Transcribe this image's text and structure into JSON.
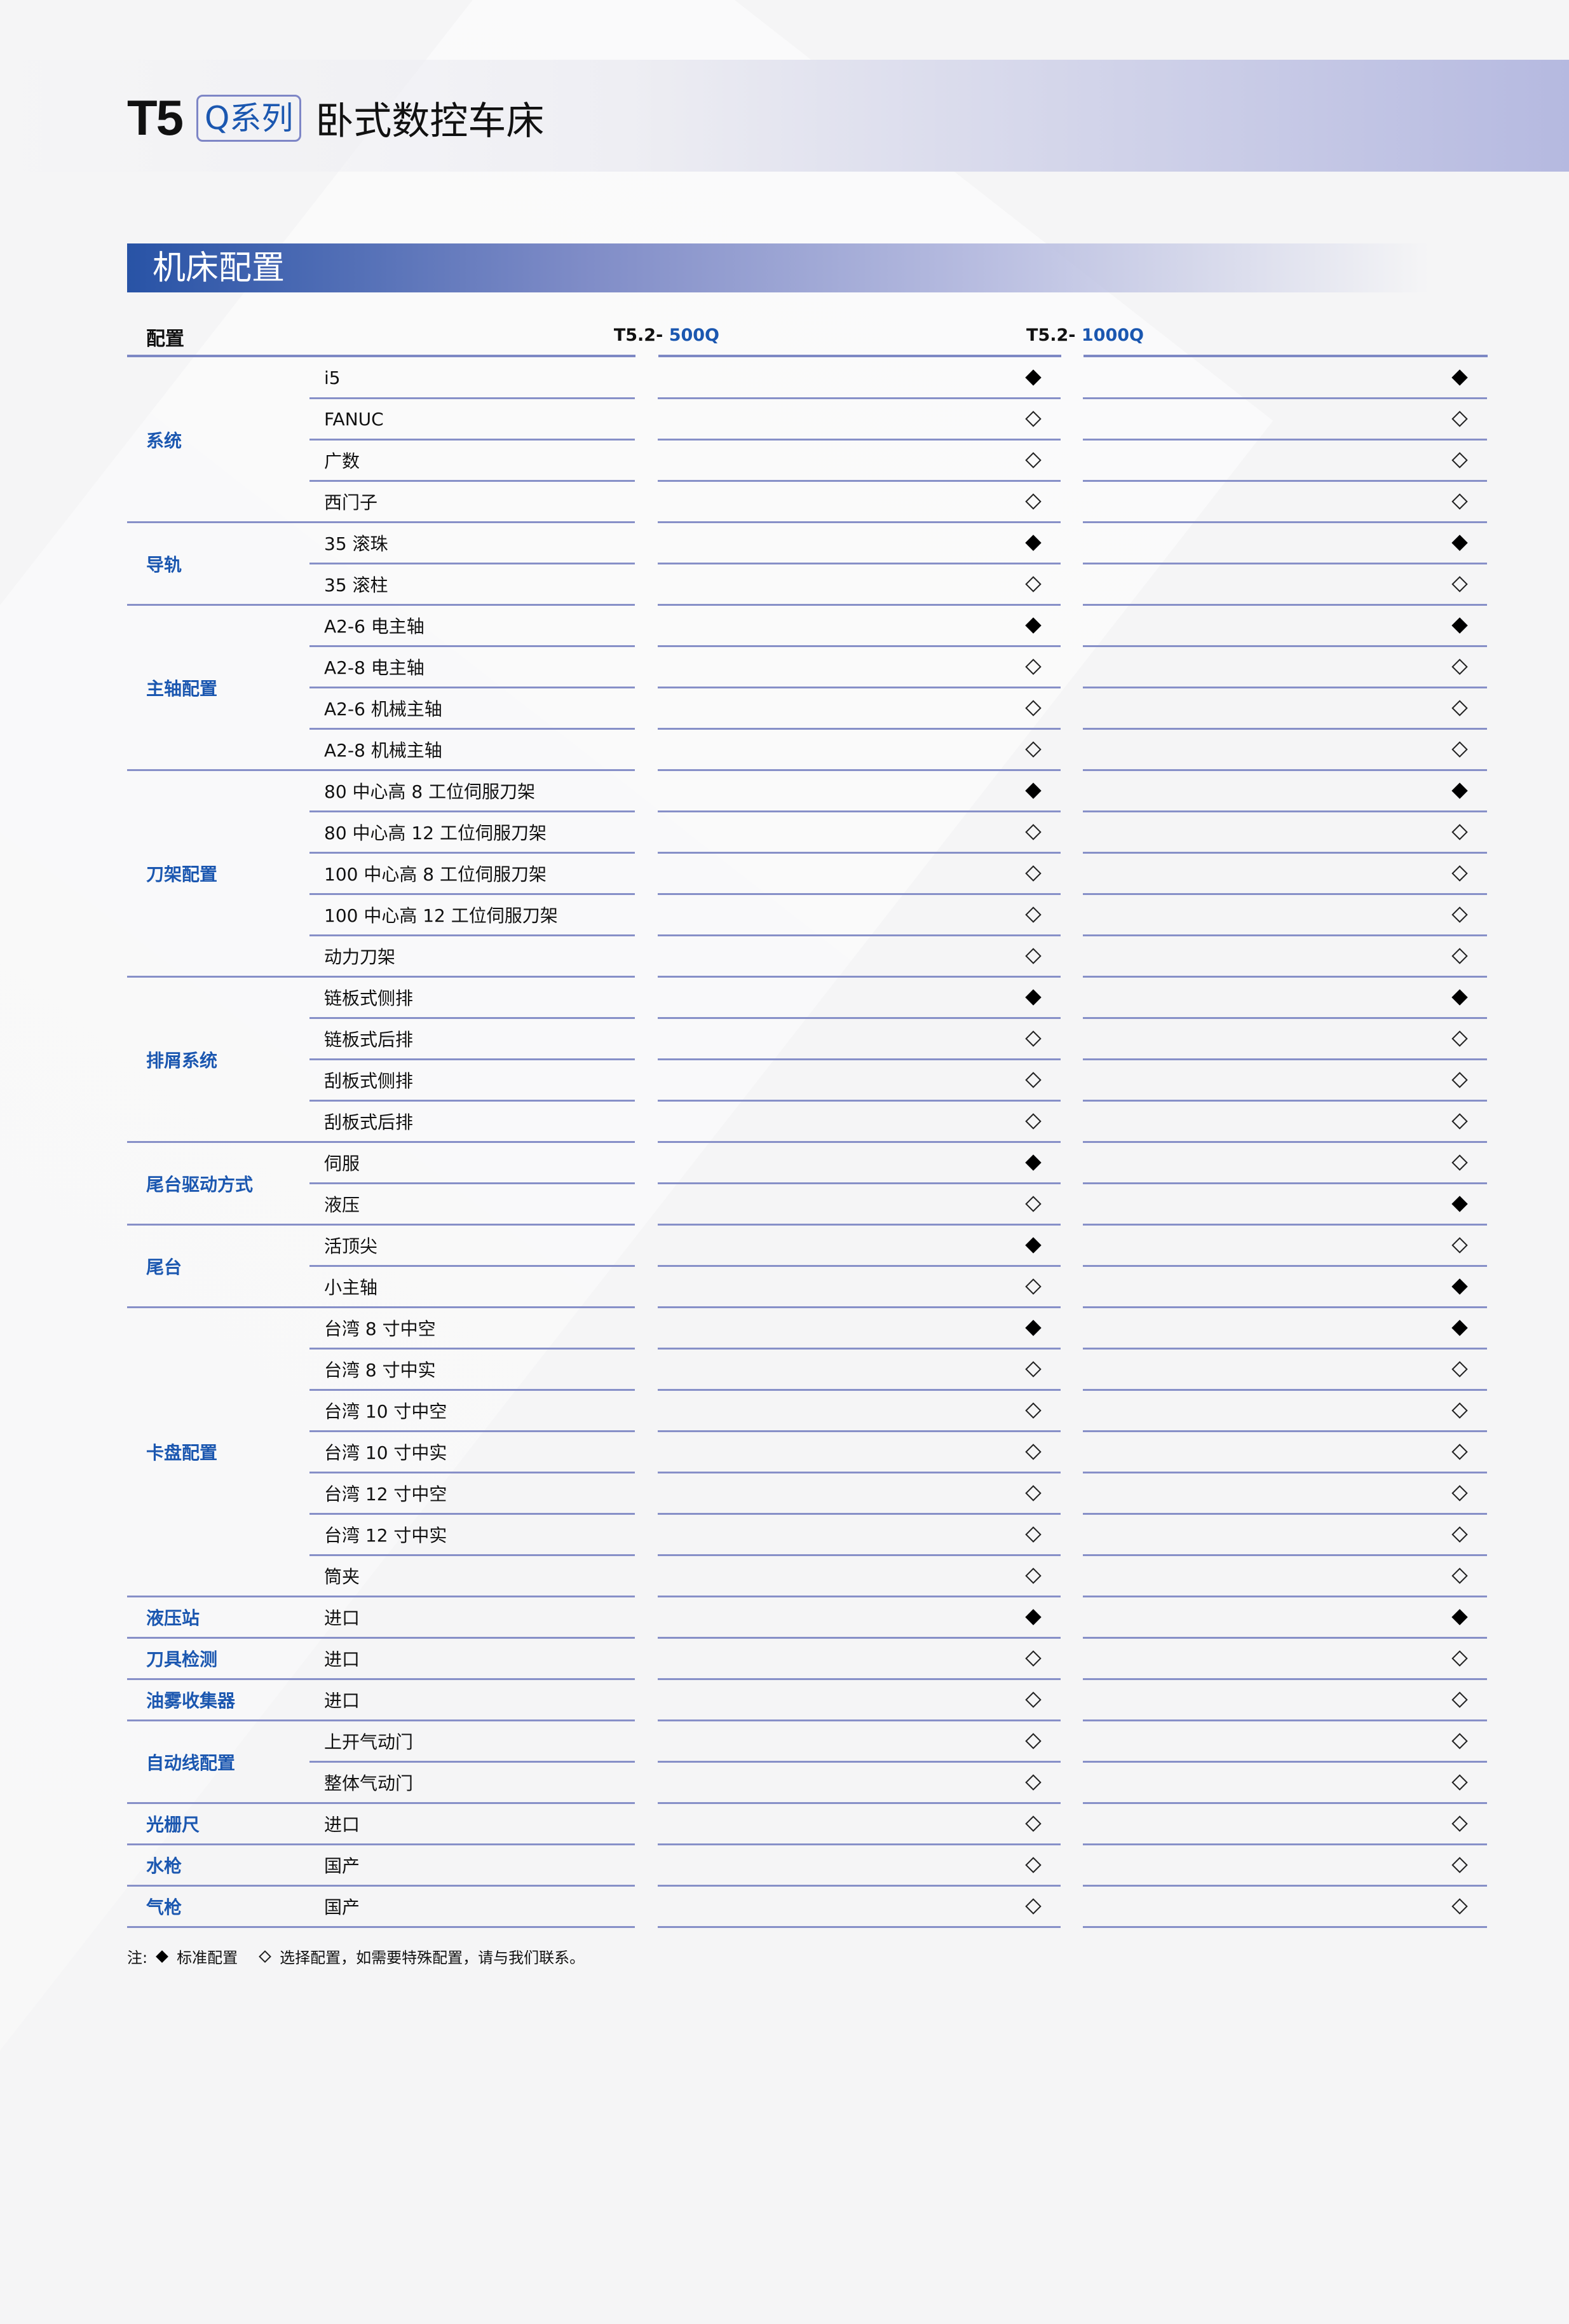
{
  "header": {
    "model": "T5",
    "series_badge": "Q系列",
    "subtitle": "卧式数控车床"
  },
  "section_title": "机床配置",
  "table": {
    "header_label": "配置",
    "models": [
      {
        "prefix": "T5.2- ",
        "suffix": "500Q"
      },
      {
        "prefix": "T5.2- ",
        "suffix": "1000Q"
      }
    ],
    "groups": [
      {
        "label": "系统",
        "items": [
          [
            "i5",
            "std",
            "std"
          ],
          [
            "FANUC",
            "opt",
            "opt"
          ],
          [
            "广数",
            "opt",
            "opt"
          ],
          [
            "西门子",
            "opt",
            "opt"
          ]
        ]
      },
      {
        "label": "导轨",
        "items": [
          [
            "35 滚珠",
            "std",
            "std"
          ],
          [
            "35 滚柱",
            "opt",
            "opt"
          ]
        ]
      },
      {
        "label": "主轴配置",
        "items": [
          [
            "A2-6 电主轴",
            "std",
            "std"
          ],
          [
            "A2-8 电主轴",
            "opt",
            "opt"
          ],
          [
            "A2-6 机械主轴",
            "opt",
            "opt"
          ],
          [
            "A2-8 机械主轴",
            "opt",
            "opt"
          ]
        ]
      },
      {
        "label": "刀架配置",
        "items": [
          [
            "80 中心高 8 工位伺服刀架",
            "std",
            "std"
          ],
          [
            "80 中心高 12 工位伺服刀架",
            "opt",
            "opt"
          ],
          [
            "100 中心高 8 工位伺服刀架",
            "opt",
            "opt"
          ],
          [
            "100 中心高 12 工位伺服刀架",
            "opt",
            "opt"
          ],
          [
            "动力刀架",
            "opt",
            "opt"
          ]
        ]
      },
      {
        "label": "排屑系统",
        "items": [
          [
            "链板式侧排",
            "std",
            "std"
          ],
          [
            "链板式后排",
            "opt",
            "opt"
          ],
          [
            "刮板式侧排",
            "opt",
            "opt"
          ],
          [
            "刮板式后排",
            "opt",
            "opt"
          ]
        ]
      },
      {
        "label": "尾台驱动方式",
        "items": [
          [
            "伺服",
            "std",
            "opt"
          ],
          [
            "液压",
            "opt",
            "std"
          ]
        ]
      },
      {
        "label": "尾台",
        "items": [
          [
            "活顶尖",
            "std",
            "opt"
          ],
          [
            "小主轴",
            "opt",
            "std"
          ]
        ]
      },
      {
        "label": "卡盘配置",
        "items": [
          [
            "台湾 8 寸中空",
            "std",
            "std"
          ],
          [
            "台湾 8 寸中实",
            "opt",
            "opt"
          ],
          [
            "台湾 10 寸中空",
            "opt",
            "opt"
          ],
          [
            "台湾 10 寸中实",
            "opt",
            "opt"
          ],
          [
            "台湾 12 寸中空",
            "opt",
            "opt"
          ],
          [
            "台湾 12 寸中实",
            "opt",
            "opt"
          ],
          [
            "筒夹",
            "opt",
            "opt"
          ]
        ]
      },
      {
        "label": "液压站",
        "items": [
          [
            "进口",
            "std",
            "std"
          ]
        ]
      },
      {
        "label": "刀具检测",
        "items": [
          [
            "进口",
            "opt",
            "opt"
          ]
        ]
      },
      {
        "label": "油雾收集器",
        "items": [
          [
            "进口",
            "opt",
            "opt"
          ]
        ]
      },
      {
        "label": "自动线配置",
        "items": [
          [
            "上开气动门",
            "opt",
            "opt"
          ],
          [
            "整体气动门",
            "opt",
            "opt"
          ]
        ]
      },
      {
        "label": "光栅尺",
        "items": [
          [
            "进口",
            "opt",
            "opt"
          ]
        ]
      },
      {
        "label": "水枪",
        "items": [
          [
            "国产",
            "opt",
            "opt"
          ]
        ]
      },
      {
        "label": "气枪",
        "items": [
          [
            "国产",
            "opt",
            "opt"
          ]
        ]
      }
    ]
  },
  "legend": {
    "prefix": "注:",
    "standard": "标准配置",
    "optional": "选择配置，如需要特殊配置，请与我们联系。"
  },
  "colors": {
    "accent": "#1b57b0",
    "line": "#8790c8"
  }
}
